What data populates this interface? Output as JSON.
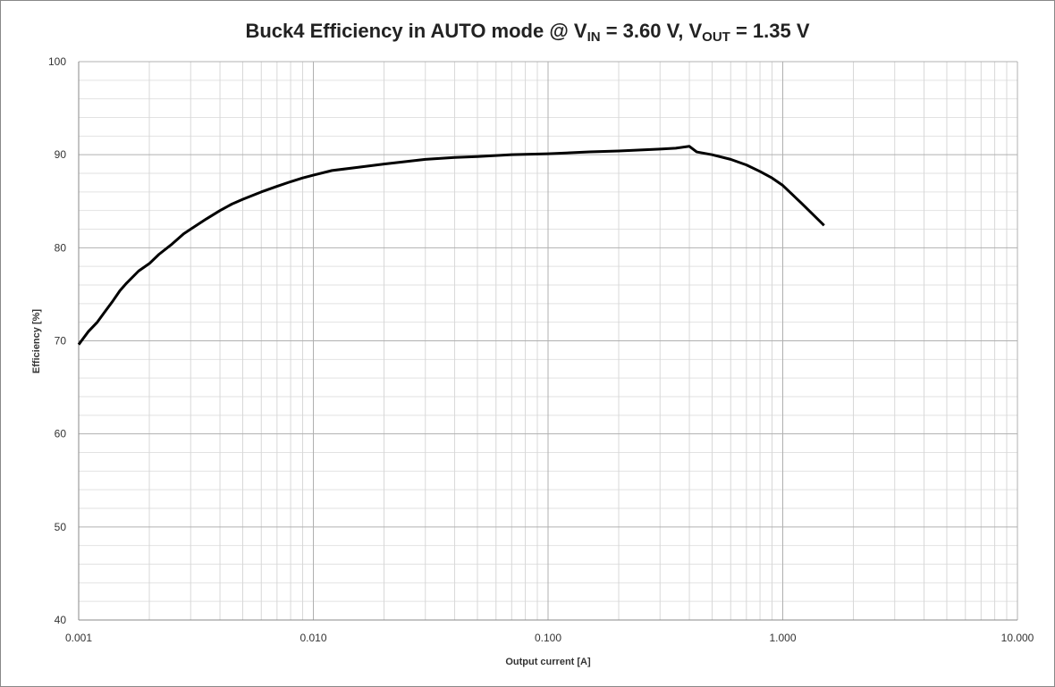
{
  "chart_data": {
    "type": "line",
    "title_parts": [
      "Buck4 Efficiency in AUTO mode @ V",
      "IN",
      " = 3.60 V, V",
      "OUT",
      " = 1.35 V"
    ],
    "x_label": "Output current [A]",
    "y_label": "Efficiency [%]",
    "x": [
      0.001,
      0.0011,
      0.0012,
      0.0013,
      0.0014,
      0.0015,
      0.0016,
      0.0018,
      0.002,
      0.0022,
      0.0025,
      0.0028,
      0.003,
      0.0035,
      0.004,
      0.0045,
      0.005,
      0.006,
      0.007,
      0.008,
      0.009,
      0.01,
      0.012,
      0.015,
      0.02,
      0.03,
      0.04,
      0.05,
      0.07,
      0.1,
      0.15,
      0.2,
      0.3,
      0.35,
      0.4,
      0.43,
      0.5,
      0.6,
      0.7,
      0.8,
      0.9,
      1.0,
      1.2,
      1.5
    ],
    "series": [
      {
        "color": "#000000",
        "values": [
          69.6,
          71,
          72,
          73.2,
          74.3,
          75.4,
          76.2,
          77.5,
          78.3,
          79.3,
          80.4,
          81.5,
          82,
          83.1,
          84.0,
          84.7,
          85.2,
          86.0,
          86.6,
          87.1,
          87.5,
          87.8,
          88.3,
          88.6,
          89.0,
          89.5,
          89.7,
          89.8,
          90.0,
          90.1,
          90.3,
          90.4,
          90.6,
          90.7,
          90.9,
          90.3,
          90.0,
          89.5,
          88.9,
          88.2,
          87.5,
          86.7,
          84.8,
          82.4
        ]
      }
    ],
    "xlog": true,
    "xlim": [
      0.001,
      10
    ],
    "xticks": [
      0.001,
      {
        "value": 0.01,
        "label": "0.010"
      },
      {
        "value": 0.1,
        "label": "0.100"
      },
      {
        "value": 1,
        "label": "1.000"
      },
      {
        "value": 10,
        "label": "10.000"
      }
    ],
    "ylim": [
      40,
      100
    ],
    "yticks": [
      40,
      50,
      60,
      70,
      80,
      90,
      100
    ],
    "grid": true,
    "minor_grid": true
  }
}
